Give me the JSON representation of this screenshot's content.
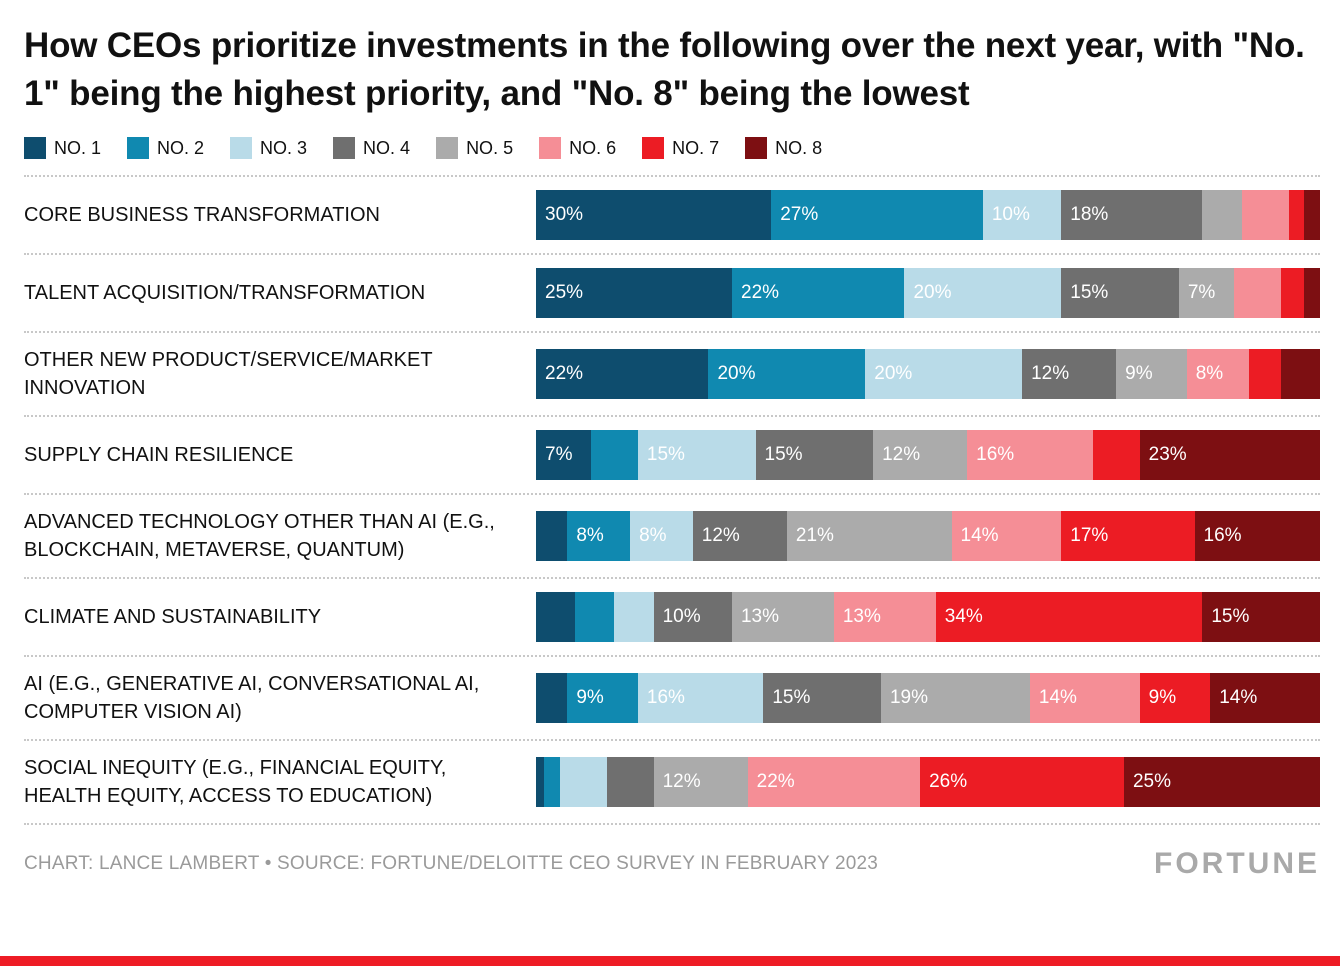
{
  "title": "How CEOs prioritize investments in the following over the next year, with \"No. 1\" being the highest priority, and \"No. 8\" being the lowest",
  "footer": {
    "credit": "CHART: LANCE LAMBERT • SOURCE: FORTUNE/DELOITTE CEO SURVEY IN FEBRUARY 2023",
    "brand": "FORTUNE"
  },
  "colors": {
    "accent_stripe": "#ee1c25",
    "separator": "#c8c8c8",
    "label_text": "#111111",
    "credit_text": "#9a9a9a"
  },
  "chart_data": {
    "type": "bar",
    "orientation": "horizontal",
    "stacked": true,
    "value_unit": "%",
    "xlim": [
      0,
      100
    ],
    "grid": false,
    "legend_position": "top",
    "series": [
      {
        "name": "NO. 1",
        "color": "#0e4d6e"
      },
      {
        "name": "NO. 2",
        "color": "#1089b0"
      },
      {
        "name": "NO. 3",
        "color": "#b9dbe8"
      },
      {
        "name": "NO. 4",
        "color": "#6f6f6f"
      },
      {
        "name": "NO. 5",
        "color": "#ababab"
      },
      {
        "name": "NO. 6",
        "color": "#f58e96"
      },
      {
        "name": "NO. 7",
        "color": "#ec1c24"
      },
      {
        "name": "NO. 8",
        "color": "#7d0f12"
      }
    ],
    "rows": [
      {
        "label": "CORE BUSINESS TRANSFORMATION",
        "values": [
          30,
          27,
          10,
          18,
          5,
          6,
          2,
          2
        ],
        "show": [
          1,
          1,
          1,
          1,
          0,
          0,
          0,
          0
        ]
      },
      {
        "label": "TALENT ACQUISITION/TRANSFORMATION",
        "values": [
          25,
          22,
          20,
          15,
          7,
          6,
          3,
          2
        ],
        "show": [
          1,
          1,
          1,
          1,
          1,
          0,
          0,
          0
        ]
      },
      {
        "label": "OTHER NEW PRODUCT/SERVICE/MARKET INNOVATION",
        "values": [
          22,
          20,
          20,
          12,
          9,
          8,
          4,
          5
        ],
        "show": [
          1,
          1,
          1,
          1,
          1,
          1,
          0,
          0
        ]
      },
      {
        "label": "SUPPLY CHAIN RESILIENCE",
        "values": [
          7,
          6,
          15,
          15,
          12,
          16,
          6,
          23
        ],
        "show": [
          1,
          0,
          1,
          1,
          1,
          1,
          0,
          1
        ]
      },
      {
        "label": "ADVANCED TECHNOLOGY OTHER THAN AI (E.G., BLOCKCHAIN, METAVERSE, QUANTUM)",
        "values": [
          4,
          8,
          8,
          12,
          21,
          14,
          17,
          16
        ],
        "show": [
          0,
          1,
          1,
          1,
          1,
          1,
          1,
          1
        ]
      },
      {
        "label": "CLIMATE AND SUSTAINABILITY",
        "values": [
          5,
          5,
          5,
          10,
          13,
          13,
          34,
          15
        ],
        "show": [
          0,
          0,
          0,
          1,
          1,
          1,
          1,
          1
        ]
      },
      {
        "label": "AI (E.G., GENERATIVE AI, CONVERSATIONAL AI, COMPUTER VISION AI)",
        "values": [
          4,
          9,
          16,
          15,
          19,
          14,
          9,
          14
        ],
        "show": [
          0,
          1,
          1,
          1,
          1,
          1,
          1,
          1
        ]
      },
      {
        "label": "SOCIAL INEQUITY (E.G., FINANCIAL EQUITY, HEALTH EQUITY, ACCESS TO EDUCATION)",
        "values": [
          1,
          2,
          6,
          6,
          12,
          22,
          26,
          25
        ],
        "show": [
          0,
          0,
          0,
          0,
          1,
          1,
          1,
          1
        ]
      }
    ]
  }
}
